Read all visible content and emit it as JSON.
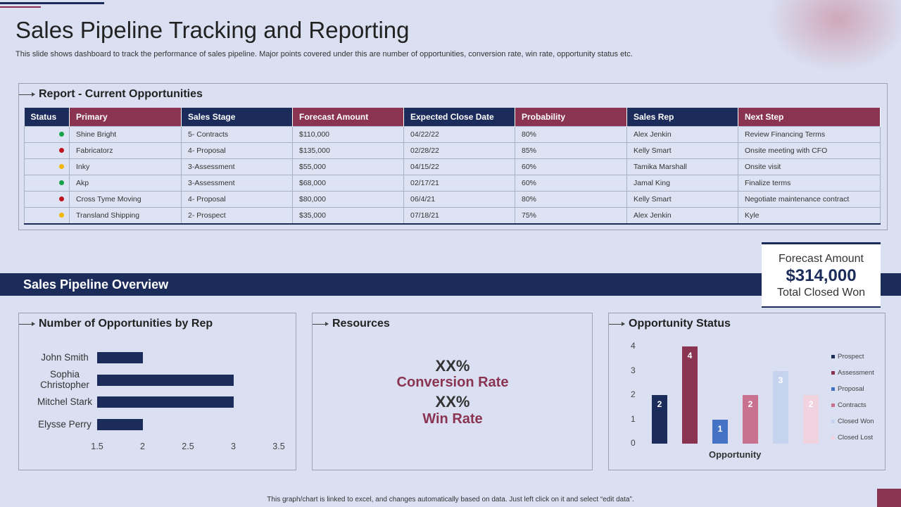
{
  "title": "Sales Pipeline Tracking and Reporting",
  "subtitle": "This slide shows dashboard to track the performance of sales pipeline. Major points covered under this are number of opportunities, conversion rate, win rate, opportunity status etc.",
  "report": {
    "title": "Report - Current Opportunities",
    "columns": [
      "Status",
      "Primary",
      "Sales Stage",
      "Forecast Amount",
      "Expected Close Date",
      "Probability",
      "Sales Rep",
      "Next Step"
    ],
    "rows": [
      {
        "status_color": "#17a34a",
        "primary": "Shine Bright",
        "stage": "5- Contracts",
        "amount": "$110,000",
        "close": "04/22/22",
        "prob": "80%",
        "rep": "Alex Jenkin",
        "next": "Review Financing Terms"
      },
      {
        "status_color": "#c0141c",
        "primary": "Fabricatorz",
        "stage": "4- Proposal",
        "amount": "$135,000",
        "close": "02/28/22",
        "prob": "85%",
        "rep": "Kelly Smart",
        "next": "Onsite meeting with CFO"
      },
      {
        "status_color": "#f2b705",
        "primary": "Inky",
        "stage": "3-Assessment",
        "amount": "$55,000",
        "close": "04/15/22",
        "prob": "60%",
        "rep": "Tamika Marshall",
        "next": "Onsite visit"
      },
      {
        "status_color": "#17a34a",
        "primary": "Akp",
        "stage": "3-Assessment",
        "amount": "$68,000",
        "close": "02/17/21",
        "prob": "60%",
        "rep": "Jamal King",
        "next": "Finalize terms"
      },
      {
        "status_color": "#c0141c",
        "primary": "Cross Tyme Moving",
        "stage": "4- Proposal",
        "amount": "$80,000",
        "close": "06/4/21",
        "prob": "80%",
        "rep": "Kelly Smart",
        "next": "Negotiate maintenance contract"
      },
      {
        "status_color": "#f2b705",
        "primary": "Transland Shipping",
        "stage": "2- Prospect",
        "amount": "$35,000",
        "close": "07/18/21",
        "prob": "75%",
        "rep": "Alex Jenkin",
        "next": "Kyle"
      }
    ]
  },
  "overview": {
    "title": "Sales Pipeline Overview"
  },
  "forecast_card": {
    "label": "Forecast Amount",
    "value": "$314,000",
    "sub": "Total Closed Won"
  },
  "opps_by_rep": {
    "title": "Number of Opportunities by Rep",
    "chart_data": {
      "type": "bar",
      "orientation": "horizontal",
      "categories": [
        "John Smith",
        "Sophia Christopher",
        "Mitchel Stark",
        "Elysse Perry"
      ],
      "values": [
        2,
        3,
        3,
        2
      ],
      "xlim": [
        1.5,
        3.5
      ],
      "xticks": [
        "1.5",
        "2",
        "2.5",
        "3",
        "3.5"
      ],
      "color": "#1b2c5b"
    }
  },
  "resources": {
    "title": "Resources",
    "conversion_value": "XX%",
    "conversion_label": "Conversion Rate",
    "win_value": "XX%",
    "win_label": "Win Rate"
  },
  "opp_status": {
    "title": "Opportunity Status",
    "chart_data": {
      "type": "bar",
      "xlabel": "Opportunity",
      "ylim": [
        0,
        4
      ],
      "yticks": [
        "0",
        "1",
        "2",
        "3",
        "4"
      ],
      "series": [
        {
          "name": "Prospect",
          "value": 2,
          "color": "#1b2c5b"
        },
        {
          "name": "Assessment",
          "value": 4,
          "color": "#8b3452"
        },
        {
          "name": "Proposal",
          "value": 1,
          "color": "#4472c4"
        },
        {
          "name": "Contracts",
          "value": 2,
          "color": "#c9728f"
        },
        {
          "name": "Closed Won",
          "value": 3,
          "color": "#c5d3ee"
        },
        {
          "name": "Closed Lost",
          "value": 2,
          "color": "#f0d3de"
        }
      ]
    }
  },
  "footer": "This graph/chart is linked to excel, and changes automatically based on data. Just left click on it and select “edit data”."
}
